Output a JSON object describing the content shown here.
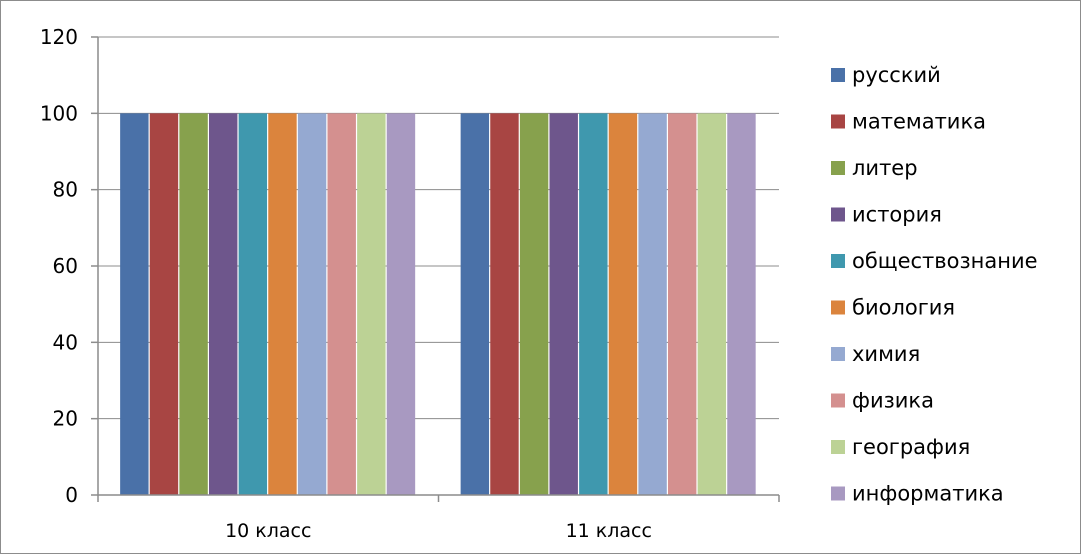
{
  "chart_data": {
    "type": "bar",
    "categories": [
      "10 класс",
      "11 класс"
    ],
    "series": [
      {
        "name": "русский",
        "values": [
          100,
          100
        ],
        "color": "#4a71a8"
      },
      {
        "name": "математика",
        "values": [
          100,
          100
        ],
        "color": "#a84543"
      },
      {
        "name": "литер",
        "values": [
          100,
          100
        ],
        "color": "#87a14d"
      },
      {
        "name": "история",
        "values": [
          100,
          100
        ],
        "color": "#6e568c"
      },
      {
        "name": "обществознание",
        "values": [
          100,
          100
        ],
        "color": "#3f98ae"
      },
      {
        "name": "биология",
        "values": [
          100,
          100
        ],
        "color": "#db843d"
      },
      {
        "name": "химия",
        "values": [
          100,
          100
        ],
        "color": "#95a9d1"
      },
      {
        "name": "физика",
        "values": [
          100,
          100
        ],
        "color": "#d4908f"
      },
      {
        "name": "география",
        "values": [
          100,
          100
        ],
        "color": "#bcd295"
      },
      {
        "name": "информатика",
        "values": [
          100,
          100
        ],
        "color": "#a899c1"
      }
    ],
    "yticks": [
      "0",
      "20",
      "40",
      "60",
      "80",
      "100",
      "120"
    ],
    "ylim": [
      0,
      120
    ],
    "grid": true,
    "legend": "right"
  }
}
